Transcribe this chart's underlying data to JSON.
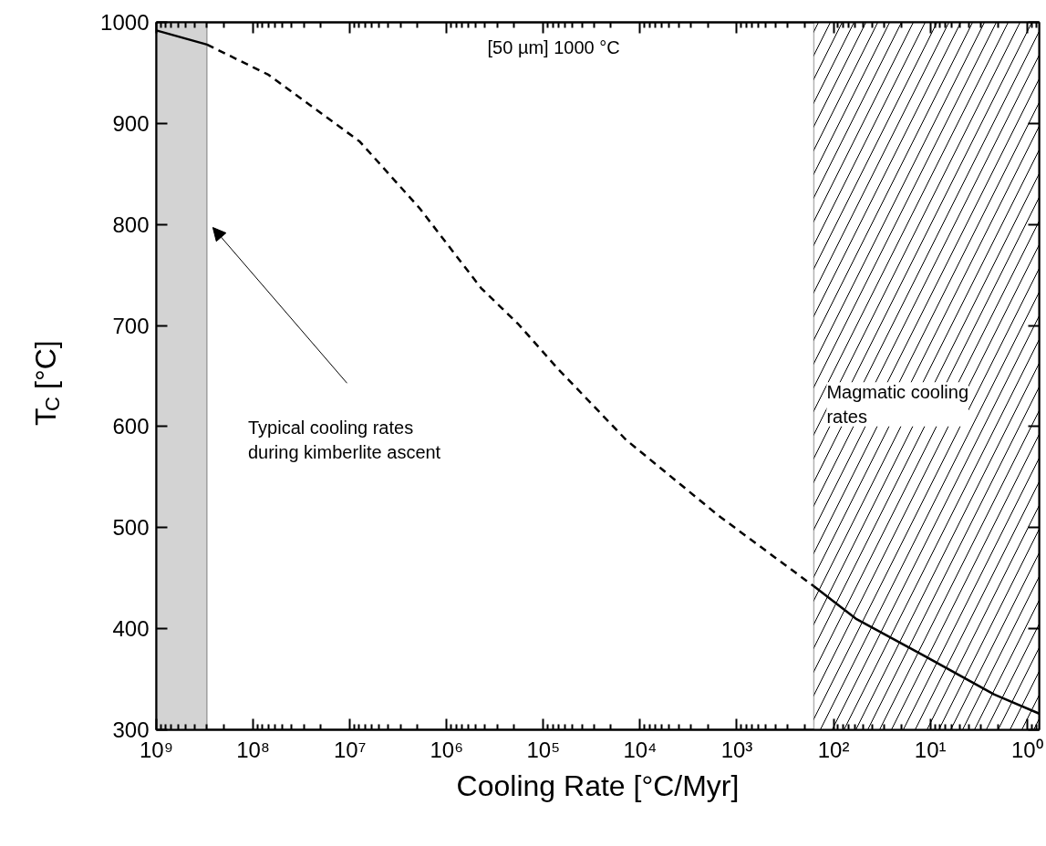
{
  "chart_data": {
    "type": "line",
    "xlabel": "Cooling Rate [°C/Myr]",
    "ylabel": "T$_{C}$ [°C]",
    "log": "x",
    "xlim": [
      1000000000,
      0.75
    ],
    "ylim": [
      300,
      1000
    ],
    "xticks": [
      {
        "value": 1000000000,
        "label": "10⁹"
      },
      {
        "value": 100000000,
        "label": "10⁸"
      },
      {
        "value": 10000000,
        "label": "10⁷"
      },
      {
        "value": 1000000,
        "label": "10⁶"
      },
      {
        "value": 100000,
        "label": "10⁵"
      },
      {
        "value": 10000,
        "label": "10⁴"
      },
      {
        "value": 1000,
        "label": "10³"
      },
      {
        "value": 100,
        "label": "10²"
      },
      {
        "value": 10,
        "label": "10¹"
      },
      {
        "value": 1,
        "label": "10⁰"
      }
    ],
    "yticks": [
      300,
      400,
      500,
      600,
      700,
      800,
      900,
      1000
    ],
    "grid": false,
    "series": [
      {
        "color": "#000000",
        "line_style": "solid",
        "x": [
          1000000000,
          300000000
        ],
        "values": [
          992,
          978
        ]
      },
      {
        "color": "#000000",
        "line_style": "dashed",
        "x": [
          300000000,
          69000000,
          7900000,
          1900000,
          440000,
          180000,
          72000,
          14000,
          1550,
          160
        ],
        "values": [
          978,
          948,
          882,
          816,
          737,
          701,
          658,
          587,
          512,
          442
        ]
      },
      {
        "color": "#000000",
        "line_style": "solid",
        "x": [
          160,
          59,
          11,
          2.2,
          0.75
        ],
        "values": [
          442,
          410,
          372,
          335,
          316
        ]
      }
    ],
    "bands": [
      {
        "axis": "x",
        "from": 1000000000,
        "to": 300000000,
        "label": "Typical cooling rates\nduring kimberlite ascent",
        "color": "#d3d3d3"
      },
      {
        "axis": "x",
        "from": 160,
        "to": 0.75,
        "label": "Magmatic cooling\nrates",
        "color": "#000000"
      }
    ],
    "annotations": [
      "[50 µm] 1000 °C"
    ]
  }
}
